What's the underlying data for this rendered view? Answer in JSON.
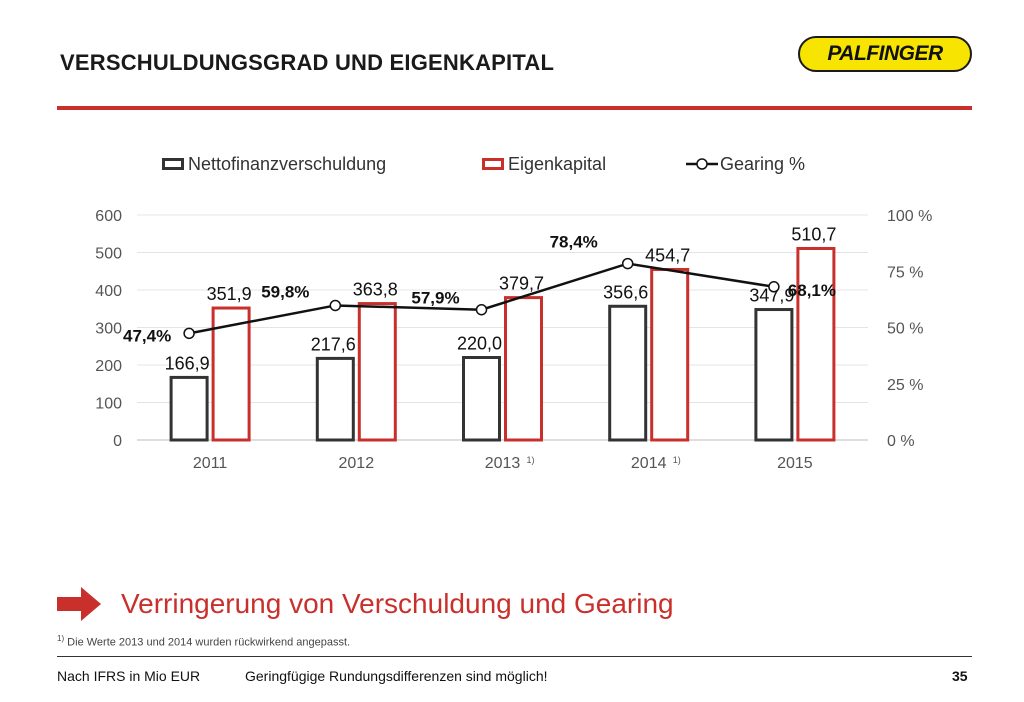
{
  "header": {
    "title": "VERSCHULDUNGSGRAD UND EIGENKAPITAL",
    "logo_text": "PALFINGER"
  },
  "legend": {
    "net_debt": "Nettofinanzverschuldung",
    "equity": "Eigenkapital",
    "gearing": "Gearing %"
  },
  "chart_data": {
    "type": "bar",
    "title": "",
    "categories": [
      "2011",
      "2012",
      "2013",
      "2014",
      "2015"
    ],
    "category_notes": [
      "",
      "",
      "1)",
      "1)",
      ""
    ],
    "series": [
      {
        "name": "Nettofinanzverschuldung",
        "values": [
          166.9,
          217.6,
          220.0,
          356.6,
          347.9
        ],
        "labels": [
          "166,9",
          "217,6",
          "220,0",
          "356,6",
          "347,9"
        ],
        "color": "#333333"
      },
      {
        "name": "Eigenkapital",
        "values": [
          351.9,
          363.8,
          379.7,
          454.7,
          510.7
        ],
        "labels": [
          "351,9",
          "363,8",
          "379,7",
          "454,7",
          "510,7"
        ],
        "color": "#c9302c"
      },
      {
        "name": "Gearing %",
        "type": "line",
        "axis": "right",
        "values": [
          47.4,
          59.8,
          57.9,
          78.4,
          68.1
        ],
        "labels": [
          "47,4%",
          "59,8%",
          "57,9%",
          "78,4%",
          "68,1%"
        ],
        "color": "#111111"
      }
    ],
    "y_left": {
      "min": 0,
      "max": 600,
      "ticks": [
        0,
        100,
        200,
        300,
        400,
        500,
        600
      ]
    },
    "y_right": {
      "min": 0,
      "max": 100,
      "ticks": [
        0,
        25,
        50,
        75,
        100
      ],
      "tick_labels": [
        "0 %",
        "25 %",
        "50 %",
        "75 %",
        "100 %"
      ]
    },
    "grid": true,
    "legend_position": "top"
  },
  "conclusion": "Verringerung von Verschuldung und Gearing",
  "footnote": {
    "mark": "1)",
    "text": " Die Werte 2013 und 2014 wurden rückwirkend angepasst."
  },
  "footer": {
    "left": "Nach IFRS in Mio EUR",
    "middle": "Geringfügige Rundungsdifferenzen sind möglich!",
    "page": "35"
  },
  "colors": {
    "accent": "#c9302c",
    "logo_bg": "#f7e400",
    "dark": "#333333"
  }
}
